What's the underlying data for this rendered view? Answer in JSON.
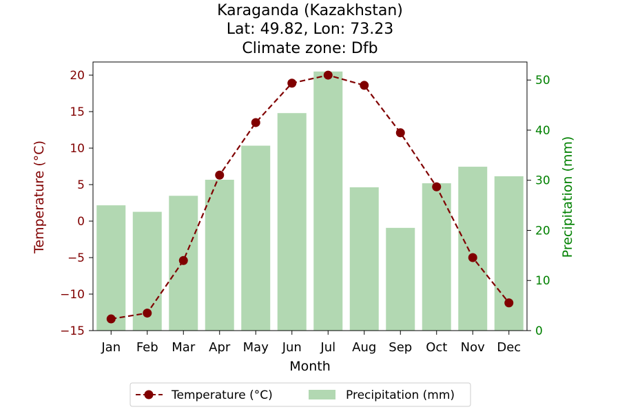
{
  "chart_data": {
    "type": "bar",
    "title_lines": [
      "Karaganda (Kazakhstan)",
      "Lat: 49.82, Lon: 73.23",
      "Climate zone: Dfb"
    ],
    "xlabel": "Month",
    "ylabel_left": "Temperature (°C)",
    "ylabel_right": "Precipitation (mm)",
    "categories": [
      "Jan",
      "Feb",
      "Mar",
      "Apr",
      "May",
      "Jun",
      "Jul",
      "Aug",
      "Sep",
      "Oct",
      "Nov",
      "Dec"
    ],
    "y_left_lim": [
      -15,
      21.8
    ],
    "y_left_ticks": [
      -15,
      -10,
      -5,
      0,
      5,
      10,
      15,
      20
    ],
    "y_left_tick_labels": [
      "−15",
      "−10",
      "−5",
      "0",
      "5",
      "10",
      "15",
      "20"
    ],
    "y_right_lim": [
      0,
      53.6
    ],
    "y_right_ticks": [
      0,
      10,
      20,
      30,
      40,
      50
    ],
    "y_right_tick_labels": [
      "0",
      "10",
      "20",
      "30",
      "40",
      "50"
    ],
    "series": [
      {
        "name": "Temperature (°C)",
        "type": "line",
        "axis": "left",
        "color": "#800000",
        "line_style": "dashed",
        "marker": "circle",
        "values": [
          -13.4,
          -12.6,
          -5.4,
          6.3,
          13.5,
          18.9,
          20.0,
          18.6,
          12.1,
          4.7,
          -5.0,
          -11.2
        ]
      },
      {
        "name": "Precipitation (mm)",
        "type": "bar",
        "axis": "right",
        "color": "#b2d8b2",
        "values": [
          25.0,
          23.7,
          26.9,
          30.1,
          36.9,
          43.4,
          51.7,
          28.6,
          20.5,
          29.4,
          32.7,
          30.8
        ]
      }
    ],
    "left_axis_color": "#800000",
    "right_axis_color": "#008000",
    "legend_position": "bottom-center",
    "grid": false
  }
}
